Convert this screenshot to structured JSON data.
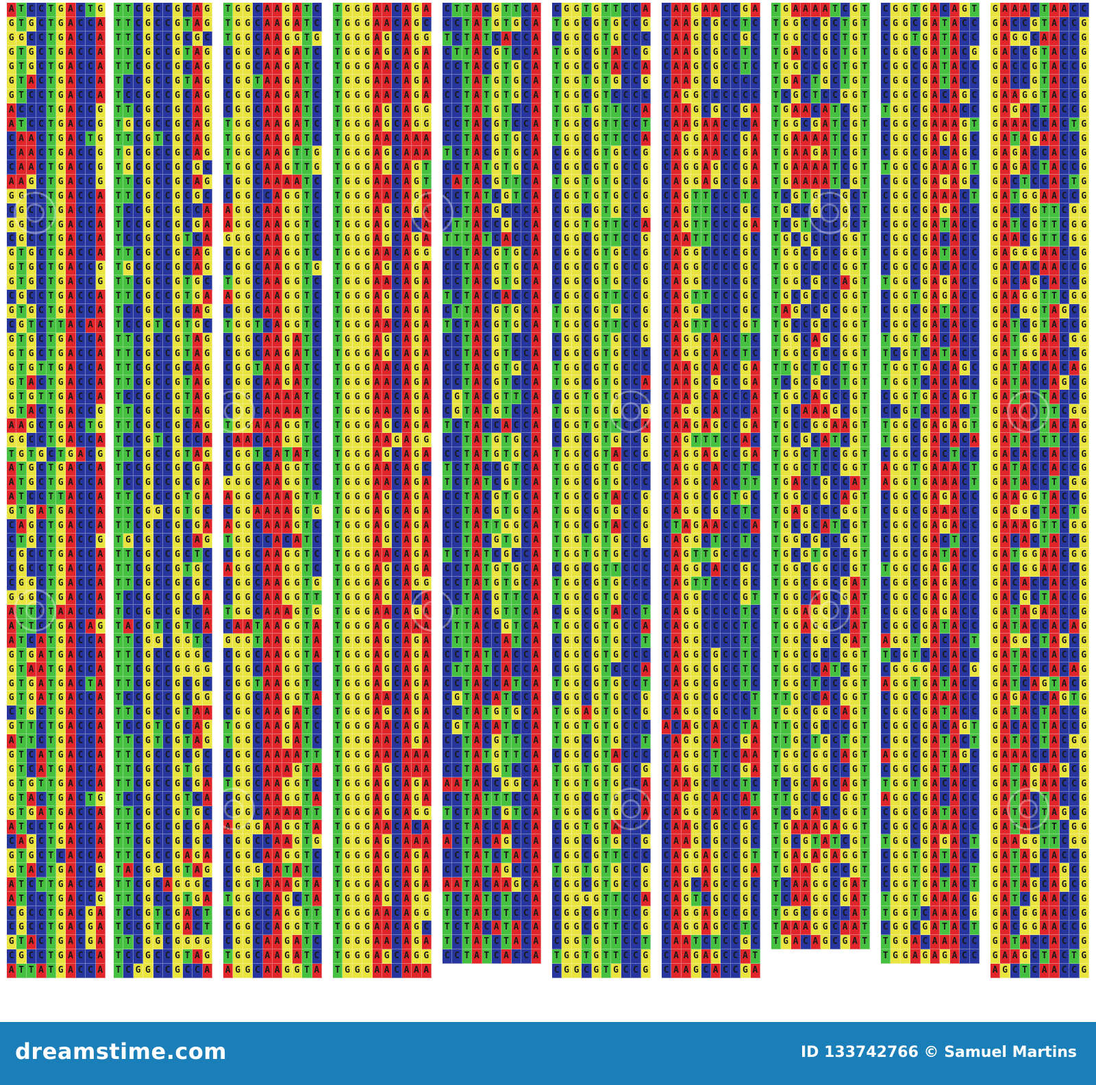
{
  "sequence_columns": [
    [
      "ATCCTGACTG",
      "GTGCTGACCA",
      "GGCCTGACCA",
      "GTGCTGACCA",
      "GTGCTGACCA",
      "GTACTGACCA",
      "GTCCTGACCA",
      "ACCCTGACCG",
      "ATCCTGACCG",
      "CAACTGACTG",
      "CAACTGACCG",
      "CAACTGACCG",
      "AAGCTGACCG",
      "GGCCTGACCA",
      "CGCCTGACCA",
      "GGCCTGACCA",
      "CGCCTGACCA",
      "GTGCTGACCA",
      "GTGCTGACCG",
      "GTGCTGACCG",
      "CGCCTGACCA",
      "GTGCTGACCA",
      "CGTCTTACAA",
      "GTGCTGACCA",
      "GTGCTGACCA",
      "GTGTTGACCA",
      "GTACTGACCA",
      "GTGTTGACCA",
      "GTACTGACCG",
      "AAGCTGACTG",
      "GGCCTGACCA",
      "TGTGCTGACG",
      "ATGCTGACCA",
      "ATGCTGACCA",
      "ATCCTTACCA",
      "GTGATGACCA",
      "CAGCTGACCA",
      "CTGCTGACCG",
      "CGCCTGACCA",
      "CGCCTGACCA",
      "CGGCTGACCA",
      "GGGCTGACCA",
      "ATTCTAACCA",
      "ATTCTGACAG",
      "ATCATGACCA",
      "GTGATGACCA",
      "GTAATGACCA",
      "GTGATGACTA",
      "GTGATGACCA",
      "CTGCTGACCA",
      "GTTCTGACCA",
      "ATTCTGACCA",
      "GTCATGACCA",
      "GTCATGACCA",
      "GTGTTGACCA",
      "GTACTGACTG",
      "GTGATGACCA",
      "ATCCTGACCA",
      "CAGCTGACCA",
      "GTGCTCACCA",
      "GTACTGACCG",
      "ATCTTGACCA",
      "ATCCTGACCG",
      "CGCCTGACGA",
      "CGCCTGACGA",
      "GTACTGACGA",
      "CGCCTGACCA",
      "ATTATGACCA"
    ],
    [
      "TTCGCCGCAG",
      "TTCGCCGTAG",
      "TTCGCCGCGC",
      "TTCGCCGTAG",
      "TTCGCCGCAG",
      "TCCGCCGTAG",
      "TCCGCCGCAG",
      "TTCGCCGCAG",
      "TGCGCCGCAG",
      "TTCGTCGCAG",
      "TGCGCCGCAG",
      "TGCGCCGCGC",
      "TTCGCCGCAG",
      "TTCGCCGCGC",
      "TCCGCCGCCA",
      "TCCGCCGCGA",
      "TCCGCCGTCA",
      "TTCGCCGCAG",
      "TGCGCCGCAG",
      "TTCGCCGTGC",
      "TTCGCCGTGA",
      "TCCGCCGCAG",
      "TCCGTCGTGC",
      "TTCGCCGTAG",
      "TTCGCCGTAG",
      "TTCGCCGCAG",
      "TTCGCCGTAG",
      "TCCGCCGTAG",
      "TTCGCCGTAG",
      "TTCGCCGCAG",
      "TCCGTCGCCA",
      "TTCGCCGTAG",
      "TCCGCCGCGA",
      "TCCGCCGCGA",
      "TTCGCCGTGA",
      "TTCGGCGTGC",
      "TTCGCCGCGA",
      "TGCGCCGCAG",
      "TTCGCCGCTC",
      "TTCGCCGTGC",
      "TTCGCCGCGC",
      "TCCGCCGCGA",
      "TCCGCCGCCA",
      "TACGTCGTCA",
      "TTCGGCGGTC",
      "TTCGCCGGGC",
      "TTCGCCGGGG",
      "TTCGCCGCGC",
      "TCCGCCGCGG",
      "TTCGCCGTAA",
      "TCCGTCGCAG",
      "TTCGTCGTAG",
      "TTCGCCGCGC",
      "TTCGCCGTGC",
      "TTCGCCGCGA",
      "TCCGCCGTCA",
      "TTCGCCGTGC",
      "TTCGCCGCGA",
      "TTCGCCGCGC",
      "TTCGCCGAGA",
      "TACGGCGTAG",
      "TTCGCAGGGC",
      "TTCGCCGTGA",
      "TCCGTCGACT",
      "TCCGTCGACT",
      "TTCGGCGGGG",
      "TCCGCCGTAG",
      "TCGGCCGCCA"
    ],
    [
      "TGGCAAGATC",
      "TGGCAAGATC",
      "TGGCAAGGTG",
      "CGGCAAGATC",
      "CGGCAAGATC",
      "CGGTAAGATC",
      "CGGCAAGATC",
      "CGGCAAGATC",
      "TGGCAAGATC",
      "TGGCAAGATC",
      "TGGCAAGTTG",
      "TGGCAAGTTG",
      "CGGCAAAATC",
      "CGGCCAGGTC",
      "AGGCAAGGTC",
      "AGGCAAGGTC",
      "GGGCAAGGTC",
      "CGGCAAGGTC",
      "CGGCAAGGTG",
      "TGGCAAGGTC",
      "AGGCAAGGTC",
      "CGGCAAGGTC",
      "TGGTCAGGTC",
      "CGGCAAGATC",
      "CGGCAAGATC",
      "CGGTAAGATC",
      "CGGCAAGATC",
      "CGGCAAAATC",
      "CGGCAAAATC",
      "TGGAAAGGTC",
      "CAACAAGGTC",
      "CGGTCATATC",
      "CGGCAAGGTC",
      "GGGCAAGGTC",
      "AGGCAAAGTT",
      "CGGAAAAGTG",
      "AGGCAAAGTC",
      "TGGCCACATC",
      "CGGCAAGGTC",
      "AGGCAAGGTC",
      "CGGCAAGGTG",
      "CGGCAAGGTT",
      "TGGCAAAGTG",
      "CAATAAGGTA",
      "GGGTAAGGTA",
      "CGGCAAGGTA",
      "CGGCAAGGTC",
      "CGGTAAGGTC",
      "CGGCAAGGTA",
      "CGGCAAGATC",
      "TGGCAAGATC",
      "TGGCAAGATC",
      "CGGCAAAATT",
      "CGGCAAAGTA",
      "TGGCAAGGTC",
      "CGGCAAGGTA",
      "CGGCAAAATT",
      "AGGGAAGGTA",
      "CGGCCAAGTG",
      "CGGCAAGGTC",
      "CGGGCATATC",
      "CGGTAAAGTA",
      "TGGCCAGCTA",
      "CGGCCAGGTT",
      "CGGCCAGGTT",
      "CGGCAAGATC",
      "TGGCAAGATC",
      "AGGCAAGGTA"
    ],
    [
      "TGGGAACAGA",
      "TGGGAACAGC",
      "TGGGAGCAGG",
      "TGGGAGCAGA",
      "TGGGAACAGA",
      "TGGGAACAGA",
      "TGGGAACAGA",
      "TGGGAGCAGG",
      "TGGGAGCAGG",
      "TGGGAACAAA",
      "TGGGAGCAAA",
      "TGGGAGCAGT",
      "TGGGAACAGT",
      "TGGGAACAGA",
      "TGGGAGCAGA",
      "TGGGAGCACA",
      "TGGGAGCAGA",
      "TGGGAACAGG",
      "TGGGAGCAGA",
      "TGGGAACAGA",
      "TGGGAGCAGA",
      "TGGGAGCAGA",
      "TGGGAACAGA",
      "TGGGAGCAGA",
      "TGGGAGCAGA",
      "TGGGAACAGA",
      "TGGGAACAGA",
      "TGGGAACAGA",
      "TGGGAACAGA",
      "TGGGAGCAGA",
      "TGGGAAGAGG",
      "TGGGAGCAGA",
      "TGGGAACAGC",
      "TGGGAACAGA",
      "TGGGAGCAGA",
      "TGGGAGCAGA",
      "TGGGAGCAGA",
      "TGGGAGCAGA",
      "TGGGAACAGA",
      "TGGGAGCAGA",
      "TGGGAGCAGG",
      "TGGGAGCACA",
      "TGGGAACAGA",
      "TGGGAGCAAA",
      "TGGGAGCAGA",
      "TGGGAGCAGA",
      "TGGGAGCAGA",
      "TGGGAGCAGA",
      "TGGGAACAGA",
      "TGGGAGCAGA",
      "TGGGAACAGA",
      "TGGGAACAGA",
      "TGGGAACAAA",
      "TGGGAGCAAA",
      "TGGGAGCAGA",
      "TGGGAGCAGA",
      "TGGGAGCAGG",
      "TGGGAACACA",
      "TGGGAGCAAA",
      "TGGGAGCAGA",
      "TGGGAGCAGA",
      "TGGGAGCAGA",
      "TGGGAGCAGG",
      "TGGGAACAGG",
      "TGGGAACAGC",
      "TGGGAACAGA",
      "TGGGAGCAGG",
      "TGGGAACAAA"
    ],
    [
      "CTTACGTTCA",
      "CCTATGTGCA",
      "TCTATCACCA",
      "CTTACGTCCA",
      "CCTACGTGCA",
      "CCTATGTGCA",
      "CCTATGTGCA",
      "CCTATGTCCA",
      "CCTACGTCCA",
      "CCTACGTGCA",
      "TCTACGTGCA",
      "CCTATGTGCA",
      "CATACGTTCA",
      "CCTATCGTCA",
      "CCTACGCCCA",
      "CTTACCGCCA",
      "TTTATCACCA",
      "CCTACGTGCA",
      "CCTACGTGCA",
      "CCTACGTGCA",
      "TCTACCACCA",
      "CTTACGTGCA",
      "TCTACGTGCA",
      "CCTACGTCCA",
      "CCTACGTCCA",
      "CCTACGTGCA",
      "CCTACGTCCA",
      "CGTACGTTCA",
      "CGTATGTCCA",
      "TCTACCACCA",
      "CCTATGTGCA",
      "CCTATGTGCA",
      "TCTACCGTCA",
      "TCTATCGTCA",
      "CCTACGTGCA",
      "CCTACGTGCA",
      "CCTATTGGCA",
      "CCTACGTGCA",
      "TCTATCGCCA",
      "CCTATGTGCA",
      "CCTATGTGCA",
      "CCTACGTTCA",
      "CTTACGTTCA",
      "CTTACCGTCA",
      "CTTACCATCA",
      "CCTATCACCA",
      "CTTATCACCA",
      "CCTACCATCA",
      "CGTACATCCA",
      "CCTATGTGCA",
      "CGTACATCCA",
      "CCTACGTTCA",
      "CCTATGTTCA",
      "CCTACGTCCA",
      "AATACCGGCA",
      "CCTATTTCCA",
      "TCTATCGTCA",
      "CCTACCACCA",
      "ACTACAGCCA",
      "CCTATCTACA",
      "CCTATAGCCA",
      "AATACAAGCA",
      "TCTATCTCCA",
      "TCTATCTCCA",
      "TCTACATACA",
      "TCTATCTACA",
      "CCTATCACCA"
    ],
    [
      "CGGTGTTCCA",
      "TGGCGTGCCG",
      "CGGCGTGCCC",
      "TGGCGTACCG",
      "TGGCGTACCA",
      "TGGTGTGCCG",
      "TGGCGTCCCC",
      "TGGTGTTCCA",
      "TGGCGTTCCT",
      "TGGCGTTCCA",
      "CGGCGTGCCG",
      "CGGCGTGCCG",
      "TGGTGTGCCG",
      "CGGTGTGCCG",
      "CGGCGTGCCG",
      "CGGTGTTCCA",
      "CGGCGTTCCG",
      "CGGCGTGCCG",
      "CGGCGTGCCG",
      "CGGCGTGCCG",
      "CGGCGTTCCG",
      "TGGCGTGCCG",
      "TGGCGTTCCG",
      "CGGCGTGCCG",
      "CGGCGTGCCC",
      "TGGCGTGCCC",
      "TGGCGTGCCA",
      "CGGTGTGCCC",
      "TGGTGTGCCG",
      "CGGTGTTCCA",
      "CGGCGTGCCG",
      "TGGCGTACCG",
      "TGGCGTGCCC",
      "TGGCGTGCCC",
      "TGGCGTACCG",
      "TGGCGTGCCG",
      "TGGCGTACCG",
      "TGGTGTGCCG",
      "TGGTGTGCCC",
      "CGGCGTTCCC",
      "TGGCGTGCCC",
      "TGGCGTGCCC",
      "CGGCGTACCT",
      "TGGCGTGCCA",
      "CGGCGTGCCT",
      "CGGCGTGCCC",
      "CGGCGTCCCA",
      "TGGCGTGCCT",
      "CGGCGTGCCG",
      "TGGAGTGCCG",
      "TGGTGTGCCC",
      "TGGCGTGCCT",
      "CGGCGTACCC",
      "TGGTGTGCCG",
      "TGGTGTGCCA",
      "TGGCGTGCCA",
      "TGGCGTGCCA",
      "CGGTGTACCC",
      "CGGCGTGCCG",
      "CGGCGTTCCC",
      "TGGTGTGCCG",
      "CGGCGTGCCG",
      "CGGGGTTCCA",
      "CGGCGTTCCG",
      "CGGCGTTCCG",
      "CGGTGTTCCT",
      "TGGTGTTCCG",
      "CGGCGTGCCG"
    ],
    [
      "CAAGAACCGA",
      "CAAGCGCCTC",
      "CAAGCGCCGC",
      "CAAGCGCCTC",
      "CAAGCGCCTC",
      "CAAGCGCCCC",
      "CAGGCCCCCC",
      "CAAGCGCCGA",
      "CAAGAACCCA",
      "CAGGAACCGA",
      "CAGGAACCGA",
      "CAGGAGCCGA",
      "CAGGAGCCGA",
      "CAGTTCCCTC",
      "CAGTTCCCGC",
      "CAGTTCCCGA",
      "CAATTCCCGC",
      "CAGGCCCCGC",
      "CAGGCCCCGC",
      "CAGGCCCCGC",
      "CAGTTCCCGC",
      "CAGGCCCCGC",
      "CAGTTCCCGT",
      "CAGGCACCTC",
      "CAGGCACCTC",
      "CAAGCACCGA",
      "CAAGCGCCGA",
      "CAAGCACCCA",
      "CAGGCACCCA",
      "CAAGAGCCGA",
      "CAGTTTCCAC",
      "CAGGAGCCGA",
      "CAGGCACCTC",
      "CAGGCACCTT",
      "CAGGCGCTGC",
      "CAGGCGCCTC",
      "CTAGAACCCA",
      "CAGGCTCCTC",
      "CAGTTGCCCC",
      "CAGGCACCGC",
      "CAGTTCCCGC",
      "CAGGCCCCGT",
      "CAGGCCCCTC",
      "CAGGCCCCTC",
      "CAGGCCCCTC",
      "CAGGCGCCTC",
      "CAGGCGCCTC",
      "CAGGCGCCTC",
      "CAGGCGCCCT",
      "CAGGCGCCCT",
      "ACAGCACCTA",
      "CAGGCACCGA",
      "CAGGCTCCAA",
      "CAGGCTCCGA",
      "CAAGCCCCTC",
      "CAGGCACCAT",
      "CAGGCACCCA",
      "CAAGCGCCGC",
      "CAAGCGCCGC",
      "CAGGAGCCGT",
      "CAGGAGCCGA",
      "CAGCAGCCGC",
      "CAGTCGCCGC",
      "CAGGAGCCGC",
      "CAGGAGCCTC",
      "CAATCTCCGC",
      "CAAGAGCCAT",
      "CAAGCACCGA"
    ],
    [
      "TGAAAATCGT",
      "TGGCCGCTGT",
      "TGGCCGCTGT",
      "TGACCGCTGT",
      "TGGCCGCTGT",
      "TGACTGCTGT",
      "TCGCTCCGGT",
      "TGAACATCGT",
      "TGGCGATCGT",
      "TGAAAATCGT",
      "TGAAGATCGT",
      "TGAAAATCGT",
      "TGAAAATCGT",
      "TCGTGCCGCT",
      "TGCCGCCGCT",
      "TCGTCCCGCT",
      "TGCGCCCGGT",
      "TGGCGCCGGT",
      "TGGCCCCGGT",
      "TGGCGCCAGT",
      "TGCGCCCGGT",
      "TAGCCGCGGT",
      "TGCCGCCGGT",
      "TGGCAGCGGT",
      "TGGCGCCGGT",
      "TTGCTGCTGT",
      "TCGCGCCTGT",
      "TGGCAGCCGT",
      "TGCAAAGCGT",
      "TGCCGGAAGT",
      "TGCGCATCGT",
      "TGGCTCCGGT",
      "TGGCTCCGGT",
      "TGACCGCCAT",
      "TGGCCGCAGT",
      "TGAGCCCGGT",
      "TGCGCATCGT",
      "TGGCGCCGGT",
      "TGCGTGCCGT",
      "TGGCGGCCGT",
      "TGGCGGCGAT",
      "TGGCAGCGAT",
      "TGGAGGCCAT",
      "TGGAGGCCAT",
      "TGGCGGCGAT",
      "TGGCGCCGGT",
      "TGGCCATCGT",
      "TGGCTCCGGT",
      "TTGCCACGGT",
      "TGGCGGCAGT",
      "TTGCGCCCGT",
      "TTGCTGCTGT",
      "TGGCGGCAGT",
      "TGGCGGCCGT",
      "TCGCAGCAGT",
      "TTGCCGCGGT",
      "TCGCACCGGT",
      "TGAAAGAGGT",
      "TGCGTATCGT",
      "TGAGAGAGGT",
      "TGAAGGCCGT",
      "TCAAGGCGAT",
      "TCAAGGCGAT",
      "TGGCGGCCAT",
      "TAAAGGCAAT",
      "TGACAGCGAT"
    ],
    [
      "CGGTGACAGT",
      "CGGCGATACC",
      "CGGTGATACC",
      "CGGCGATACG",
      "CGGCGATACC",
      "CGGCGATACC",
      "CGGCGACAGC",
      "TGGCGAAACC",
      "CGGCGAAAGT",
      "CGGCGAGAGC",
      "CGGCGACAGC",
      "TGGCGAAAGT",
      "CGGCGAGAGC",
      "CGGCGAAACT",
      "CGGCGAGACC",
      "CGGCGATACC",
      "CGGCGACACC",
      "CGGCGATACC",
      "CGGCGACACC",
      "TGGCGAGACC",
      "CGGTGAGACC",
      "CGGCGATACC",
      "CGGCGACACC",
      "TGGTGACACC",
      "TCGTCATACC",
      "TGGTGACAGC",
      "TGGTCACACC",
      "CGGTGACAGT",
      "CCGTCACACT",
      "TGGCGAGAGT",
      "TGGCGACACA",
      "CGGCGACTCC",
      "AGGTGAAACT",
      "AGGTGAAACT",
      "CGGCGAGACC",
      "CGGCGAAACC",
      "CGGCGAGACC",
      "CGGCGACTCC",
      "CGGCGATACC",
      "TGGCGAGACC",
      "CGGCGAGACC",
      "CGGCGAGACC",
      "CGGCGAGACC",
      "CGGCGATACC",
      "AGGTGACACT",
      "TCGTCACACC",
      "CGGGGACACG",
      "AGGTGATACC",
      "CGGCGAAACC",
      "CGGCGATACC",
      "CGGCGACAGT",
      "CGGCGATACT",
      "AGGCGATAGC",
      "CGGCGATACC",
      "TGGTGACACC",
      "AGGCGACACC",
      "CGGCGATACC",
      "CGGCGAAACC",
      "TGGCGAGACT",
      "CGGTGATACC",
      "CGGTGACACT",
      "CGGTGATACT",
      "TGGTGAAACG",
      "TGGTCAAACG",
      "CGGCGATACT",
      "TGGACAAACC",
      "TGGAGAGACC"
    ],
    [
      "GAAACTAACC",
      "GACCGTACCG",
      "GAGGCAACCG",
      "GACCGTACCG",
      "GACCGTACCG",
      "GACCGTACCG",
      "GAAGGTACCG",
      "GAGACTACCG",
      "GAAACCACTG",
      "GATAGAACCG",
      "GAGACCACCG",
      "GAGACTACCG",
      "GACTCCACTG",
      "GATGGAACCG",
      "GACCGTTCGG",
      "GATCGTTCGG",
      "GAACGTTCGG",
      "GAGGGAACCG",
      "GACACAACCG",
      "GACAGCACCG",
      "GAAGGTTCGG",
      "GACGGTAGCG",
      "GATCGTACCG",
      "GATGGAACGG",
      "GATGGAACCG",
      "GATACCACAG",
      "GATACCAGCG",
      "GATACTACCG",
      "GAAACTTCGG",
      "GAAACTACAG",
      "GATACTTCCG",
      "GACACCACCG",
      "GATACCACCG",
      "GATACCTCGG",
      "GAAGGTACCG",
      "GAGGCTACTG",
      "GAAAGTTCGG",
      "GACACTACCG",
      "GATGGAACGG",
      "GACGGAACCG",
      "GACACCACCG",
      "GACGCTACCG",
      "GATAGAACCG",
      "GATACCACAG",
      "GAGGCTAGCG",
      "GATACCACCG",
      "GATACCACAG",
      "GATCAGTACG",
      "GAGACCAGTG",
      "GATACTACCG",
      "GACACTACCG",
      "GATACTACGG",
      "GAAACCACCG",
      "GATAGAAGCG",
      "GATAGAACCG",
      "GATACTACCG",
      "GATACTAGCG",
      "GATACTTCGG",
      "GAAGGTTCGG",
      "GATAGCACCG",
      "GATACCAGCG",
      "GATAGCAGCG",
      "GATCGAACCG",
      "GACGGAACCG",
      "GACGGAACCG",
      "GATACCACCG",
      "GAAGCTACTG",
      "AGCTCAACCG"
    ]
  ],
  "colors": {
    "A": "#e0262b",
    "T": "#45c040",
    "G": "#e9e440",
    "C": "#26369e"
  },
  "footer": {
    "brand": "dreamstime.com",
    "credit": "ID 133742766 © Samuel Martins"
  }
}
